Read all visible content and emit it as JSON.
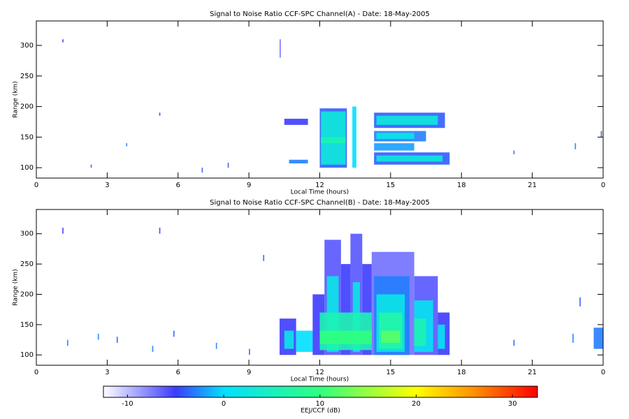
{
  "chart_data": [
    {
      "type": "heatmap",
      "title": "Signal to Noise Ratio CCF-SPC Channel(A) - Date: 18-May-2005",
      "xlabel": "Local Time (hours)",
      "ylabel": "Range (km)",
      "xlim": [
        0,
        24
      ],
      "xticks": [
        0,
        3,
        6,
        9,
        12,
        15,
        18,
        21,
        {
          "value": 24,
          "label": "0"
        }
      ],
      "ylim": [
        83,
        340
      ],
      "yticks": [
        100,
        150,
        200,
        250,
        300
      ],
      "patches": [
        {
          "x": [
            12.0,
            13.15
          ],
          "y": [
            100,
            197
          ],
          "value": -4
        },
        {
          "x": [
            12.05,
            13.1
          ],
          "y": [
            105,
            192
          ],
          "value": 3
        },
        {
          "x": [
            12.05,
            13.1
          ],
          "y": [
            140,
            150
          ],
          "value": 6
        },
        {
          "x": [
            13.38,
            13.55
          ],
          "y": [
            100,
            200
          ],
          "value": 0
        },
        {
          "x": [
            14.3,
            17.3
          ],
          "y": [
            165,
            190
          ],
          "value": -4
        },
        {
          "x": [
            14.4,
            17.0
          ],
          "y": [
            170,
            185
          ],
          "value": 3
        },
        {
          "x": [
            14.3,
            16.5
          ],
          "y": [
            143,
            160
          ],
          "value": -3
        },
        {
          "x": [
            14.4,
            16.0
          ],
          "y": [
            147,
            157
          ],
          "value": 2
        },
        {
          "x": [
            14.3,
            16.0
          ],
          "y": [
            128,
            140
          ],
          "value": -2
        },
        {
          "x": [
            14.3,
            17.5
          ],
          "y": [
            105,
            125
          ],
          "value": -4
        },
        {
          "x": [
            14.4,
            17.2
          ],
          "y": [
            110,
            120
          ],
          "value": 3
        },
        {
          "x": [
            10.7,
            11.5
          ],
          "y": [
            107,
            113
          ],
          "value": -3
        },
        {
          "x": [
            10.5,
            11.5
          ],
          "y": [
            170,
            180
          ],
          "value": -5
        },
        {
          "x": [
            1.1,
            1.15
          ],
          "y": [
            305,
            310
          ],
          "value": -5
        },
        {
          "x": [
            2.3,
            2.35
          ],
          "y": [
            100,
            105
          ],
          "value": -4
        },
        {
          "x": [
            3.8,
            3.85
          ],
          "y": [
            135,
            140
          ],
          "value": -3
        },
        {
          "x": [
            5.2,
            5.25
          ],
          "y": [
            185,
            190
          ],
          "value": -5
        },
        {
          "x": [
            7.0,
            7.05
          ],
          "y": [
            92,
            100
          ],
          "value": -4
        },
        {
          "x": [
            8.1,
            8.15
          ],
          "y": [
            100,
            108
          ],
          "value": -4
        },
        {
          "x": [
            10.3,
            10.35
          ],
          "y": [
            280,
            310
          ],
          "value": -7
        },
        {
          "x": [
            20.2,
            20.25
          ],
          "y": [
            122,
            128
          ],
          "value": -4
        },
        {
          "x": [
            22.8,
            22.85
          ],
          "y": [
            130,
            140
          ],
          "value": -3
        },
        {
          "x": [
            23.9,
            23.95
          ],
          "y": [
            150,
            160
          ],
          "value": -4
        }
      ]
    },
    {
      "type": "heatmap",
      "title": "Signal to Noise Ratio CCF-SPC Channel(B) - Date: 18-May-2005",
      "xlabel": "Local Time (hours)",
      "ylabel": "Range (km)",
      "xlim": [
        0,
        24
      ],
      "xticks": [
        0,
        3,
        6,
        9,
        12,
        15,
        18,
        21,
        {
          "value": 24,
          "label": "0"
        }
      ],
      "ylim": [
        83,
        340
      ],
      "yticks": [
        100,
        150,
        200,
        250,
        300
      ],
      "patches": [
        {
          "x": [
            10.3,
            11.0
          ],
          "y": [
            100,
            160
          ],
          "value": -5
        },
        {
          "x": [
            10.5,
            10.9
          ],
          "y": [
            110,
            140
          ],
          "value": 2
        },
        {
          "x": [
            11.0,
            11.7
          ],
          "y": [
            105,
            140
          ],
          "value": 0
        },
        {
          "x": [
            11.7,
            12.2
          ],
          "y": [
            100,
            200
          ],
          "value": -5
        },
        {
          "x": [
            12.2,
            12.9
          ],
          "y": [
            100,
            290
          ],
          "value": -6
        },
        {
          "x": [
            12.3,
            12.8
          ],
          "y": [
            105,
            230
          ],
          "value": 2
        },
        {
          "x": [
            12.9,
            13.3
          ],
          "y": [
            100,
            250
          ],
          "value": -5
        },
        {
          "x": [
            13.3,
            13.8
          ],
          "y": [
            100,
            300
          ],
          "value": -6
        },
        {
          "x": [
            13.4,
            13.7
          ],
          "y": [
            105,
            220
          ],
          "value": 2
        },
        {
          "x": [
            13.8,
            14.2
          ],
          "y": [
            100,
            250
          ],
          "value": -5
        },
        {
          "x": [
            14.2,
            16.0
          ],
          "y": [
            100,
            270
          ],
          "value": -7
        },
        {
          "x": [
            14.3,
            15.8
          ],
          "y": [
            100,
            230
          ],
          "value": -3
        },
        {
          "x": [
            14.4,
            15.6
          ],
          "y": [
            105,
            200
          ],
          "value": 2
        },
        {
          "x": [
            16.0,
            17.0
          ],
          "y": [
            100,
            230
          ],
          "value": -6
        },
        {
          "x": [
            16.0,
            16.8
          ],
          "y": [
            105,
            190
          ],
          "value": 1
        },
        {
          "x": [
            16.0,
            16.5
          ],
          "y": [
            115,
            160
          ],
          "value": 6
        },
        {
          "x": [
            17.0,
            17.5
          ],
          "y": [
            100,
            170
          ],
          "value": -5
        },
        {
          "x": [
            17.0,
            17.3
          ],
          "y": [
            110,
            150
          ],
          "value": 1
        },
        {
          "x": [
            12.0,
            14.2
          ],
          "y": [
            108,
            170
          ],
          "value": 6
        },
        {
          "x": [
            14.5,
            15.5
          ],
          "y": [
            110,
            170
          ],
          "value": 7
        },
        {
          "x": [
            12.0,
            14.2
          ],
          "y": [
            118,
            140
          ],
          "value": 10
        },
        {
          "x": [
            14.6,
            15.4
          ],
          "y": [
            120,
            140
          ],
          "value": 12
        },
        {
          "x": [
            23.6,
            24.0
          ],
          "y": [
            110,
            145
          ],
          "value": -3
        },
        {
          "x": [
            1.1,
            1.15
          ],
          "y": [
            300,
            310
          ],
          "value": -5
        },
        {
          "x": [
            1.3,
            1.35
          ],
          "y": [
            115,
            125
          ],
          "value": -3
        },
        {
          "x": [
            2.6,
            2.65
          ],
          "y": [
            125,
            135
          ],
          "value": -3
        },
        {
          "x": [
            3.4,
            3.45
          ],
          "y": [
            120,
            130
          ],
          "value": -4
        },
        {
          "x": [
            4.9,
            4.95
          ],
          "y": [
            105,
            115
          ],
          "value": -3
        },
        {
          "x": [
            5.2,
            5.25
          ],
          "y": [
            300,
            310
          ],
          "value": -5
        },
        {
          "x": [
            5.8,
            5.85
          ],
          "y": [
            130,
            140
          ],
          "value": -4
        },
        {
          "x": [
            7.6,
            7.65
          ],
          "y": [
            110,
            120
          ],
          "value": -3
        },
        {
          "x": [
            9.0,
            9.05
          ],
          "y": [
            100,
            110
          ],
          "value": -4
        },
        {
          "x": [
            9.6,
            9.65
          ],
          "y": [
            255,
            265
          ],
          "value": -4
        },
        {
          "x": [
            20.2,
            20.25
          ],
          "y": [
            115,
            125
          ],
          "value": -4
        },
        {
          "x": [
            22.7,
            22.75
          ],
          "y": [
            120,
            135
          ],
          "value": -3
        },
        {
          "x": [
            23.0,
            23.05
          ],
          "y": [
            180,
            195
          ],
          "value": -4
        }
      ]
    }
  ],
  "colorbar": {
    "label": "EEJ/CCF (dB)",
    "clim": [
      -12.5,
      32.6
    ],
    "ticks": [
      -10,
      0,
      10,
      20,
      30
    ],
    "colormap": [
      [
        -12.5,
        "#ffffff"
      ],
      [
        -5,
        "#3c3cff"
      ],
      [
        0,
        "#00e0ff"
      ],
      [
        10,
        "#30ff80"
      ],
      [
        20,
        "#ffff00"
      ],
      [
        26,
        "#ff9000"
      ],
      [
        32.6,
        "#ff0000"
      ]
    ]
  }
}
